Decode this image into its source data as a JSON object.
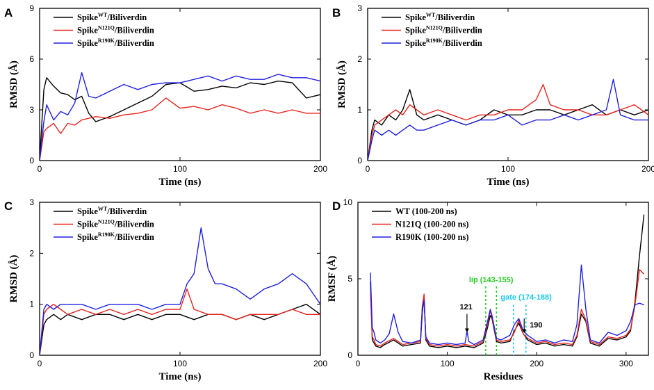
{
  "colors": {
    "WT": "#000000",
    "N121Q": "#e8231d",
    "R190K": "#1f1fe0",
    "lip": "#22cc22",
    "gate": "#18c8e8"
  },
  "chart_data": [
    {
      "panel": "A",
      "type": "line",
      "xlabel": "Time (ns)",
      "ylabel": "RMSD (Å)",
      "xlim": [
        0,
        200
      ],
      "ylim": [
        0,
        9
      ],
      "xticks": [
        "0",
        "100",
        "200"
      ],
      "yticks": [
        "0",
        "3",
        "6",
        "9"
      ],
      "legend": [
        {
          "pre": "Spike",
          "sup": "WT",
          "post": "/Biliverdin",
          "key": "WT"
        },
        {
          "pre": "Spike",
          "sup": "N121Q",
          "post": "/Biliverdin",
          "key": "N121Q"
        },
        {
          "pre": "Spike",
          "sup": "R190K",
          "post": "/Biliverdin",
          "key": "R190K"
        }
      ],
      "series": [
        {
          "key": "WT",
          "x": [
            0,
            3,
            5,
            10,
            15,
            20,
            25,
            30,
            35,
            40,
            50,
            60,
            70,
            80,
            90,
            100,
            110,
            120,
            130,
            140,
            150,
            160,
            170,
            180,
            190,
            200
          ],
          "y": [
            0,
            4.2,
            4.9,
            4.4,
            4.0,
            3.9,
            3.6,
            3.8,
            2.8,
            2.3,
            2.6,
            3.0,
            3.4,
            3.8,
            4.5,
            4.6,
            4.1,
            4.2,
            4.4,
            4.3,
            4.6,
            4.5,
            4.7,
            4.6,
            3.7,
            3.9
          ]
        },
        {
          "key": "N121Q",
          "x": [
            0,
            3,
            5,
            10,
            15,
            20,
            25,
            30,
            40,
            50,
            60,
            70,
            80,
            90,
            100,
            110,
            120,
            130,
            140,
            150,
            160,
            170,
            180,
            190,
            200
          ],
          "y": [
            0,
            1.7,
            1.9,
            2.2,
            1.6,
            2.2,
            2.1,
            2.4,
            2.6,
            2.5,
            2.7,
            2.8,
            3.0,
            3.7,
            3.1,
            3.2,
            3.0,
            3.3,
            3.1,
            2.8,
            3.0,
            2.8,
            3.0,
            2.8,
            2.8
          ]
        },
        {
          "key": "R190K",
          "x": [
            0,
            3,
            5,
            10,
            15,
            20,
            25,
            30,
            35,
            40,
            50,
            60,
            70,
            80,
            90,
            100,
            110,
            120,
            130,
            140,
            150,
            160,
            170,
            180,
            190,
            200
          ],
          "y": [
            0,
            2.3,
            3.3,
            2.4,
            2.9,
            2.7,
            3.4,
            5.2,
            3.8,
            3.7,
            4.1,
            4.5,
            4.2,
            4.5,
            4.6,
            4.6,
            4.8,
            5.0,
            4.7,
            5.0,
            4.8,
            4.8,
            5.1,
            4.9,
            4.9,
            4.7
          ]
        }
      ]
    },
    {
      "panel": "B",
      "type": "line",
      "xlabel": "Time (ns)",
      "ylabel": "RMSD (Å)",
      "xlim": [
        0,
        200
      ],
      "ylim": [
        0,
        3
      ],
      "xticks": [
        "0",
        "100",
        "200"
      ],
      "yticks": [
        "0",
        "1",
        "2",
        "3"
      ],
      "legend": [
        {
          "pre": "Spike",
          "sup": "WT",
          "post": "/Biliverdin",
          "key": "WT"
        },
        {
          "pre": "Spike",
          "sup": "N121Q",
          "post": "/Biliverdin",
          "key": "N121Q"
        },
        {
          "pre": "Spike",
          "sup": "R190K",
          "post": "/Biliverdin",
          "key": "R190K"
        }
      ],
      "series": [
        {
          "key": "WT",
          "x": [
            0,
            3,
            5,
            10,
            15,
            20,
            25,
            30,
            35,
            40,
            50,
            60,
            70,
            80,
            90,
            100,
            110,
            120,
            130,
            140,
            150,
            160,
            170,
            180,
            190,
            200
          ],
          "y": [
            0,
            0.6,
            0.8,
            0.7,
            0.9,
            0.8,
            1.0,
            1.4,
            0.9,
            0.8,
            0.9,
            0.8,
            0.7,
            0.8,
            1.0,
            0.9,
            0.9,
            1.0,
            1.0,
            0.9,
            1.0,
            1.1,
            0.9,
            1.0,
            0.9,
            1.0
          ]
        },
        {
          "key": "N121Q",
          "x": [
            0,
            3,
            5,
            10,
            15,
            20,
            25,
            30,
            35,
            40,
            50,
            60,
            70,
            80,
            90,
            100,
            110,
            120,
            125,
            130,
            140,
            150,
            160,
            170,
            180,
            190,
            200
          ],
          "y": [
            0,
            0.5,
            0.7,
            0.8,
            0.9,
            1.0,
            0.9,
            1.1,
            1.0,
            0.9,
            1.0,
            0.9,
            0.8,
            0.9,
            0.9,
            1.0,
            1.0,
            1.2,
            1.5,
            1.1,
            1.0,
            1.0,
            0.9,
            0.9,
            1.0,
            1.1,
            0.9
          ]
        },
        {
          "key": "R190K",
          "x": [
            0,
            3,
            5,
            10,
            15,
            20,
            25,
            30,
            35,
            40,
            50,
            60,
            70,
            80,
            90,
            100,
            110,
            120,
            130,
            140,
            150,
            160,
            170,
            175,
            180,
            190,
            200
          ],
          "y": [
            0,
            0.4,
            0.6,
            0.5,
            0.6,
            0.5,
            0.6,
            0.7,
            0.6,
            0.6,
            0.7,
            0.8,
            0.7,
            0.8,
            0.8,
            0.9,
            0.7,
            0.8,
            0.8,
            0.9,
            0.8,
            0.9,
            1.0,
            1.6,
            0.9,
            0.8,
            0.8
          ]
        }
      ]
    },
    {
      "panel": "C",
      "type": "line",
      "xlabel": "Time (ns)",
      "ylabel": "RMSD (Å)",
      "xlim": [
        0,
        200
      ],
      "ylim": [
        0,
        3
      ],
      "xticks": [
        "0",
        "100",
        "200"
      ],
      "yticks": [
        "0",
        "1",
        "2",
        "3"
      ],
      "legend": [
        {
          "pre": "Spike",
          "sup": "WT",
          "post": "/Biliverdin",
          "key": "WT"
        },
        {
          "pre": "Spike",
          "sup": "N121Q",
          "post": "/Biliverdin",
          "key": "N121Q"
        },
        {
          "pre": "Spike",
          "sup": "R190K",
          "post": "/Biliverdin",
          "key": "R190K"
        }
      ],
      "series": [
        {
          "key": "WT",
          "x": [
            0,
            3,
            5,
            10,
            15,
            20,
            30,
            40,
            50,
            60,
            70,
            80,
            90,
            100,
            110,
            120,
            130,
            140,
            150,
            160,
            170,
            180,
            190,
            200
          ],
          "y": [
            0,
            0.6,
            0.7,
            0.8,
            0.7,
            0.8,
            0.7,
            0.8,
            0.8,
            0.7,
            0.8,
            0.7,
            0.8,
            0.8,
            0.7,
            0.8,
            0.8,
            0.7,
            0.8,
            0.7,
            0.8,
            0.9,
            1.0,
            0.8
          ]
        },
        {
          "key": "N121Q",
          "x": [
            0,
            3,
            5,
            10,
            15,
            20,
            30,
            40,
            50,
            60,
            70,
            80,
            90,
            100,
            105,
            110,
            120,
            130,
            140,
            150,
            160,
            170,
            180,
            190,
            200
          ],
          "y": [
            0,
            0.8,
            0.9,
            1.0,
            0.9,
            0.8,
            0.9,
            0.8,
            0.9,
            0.8,
            0.9,
            0.8,
            0.9,
            0.9,
            1.3,
            0.9,
            0.8,
            0.8,
            0.7,
            0.8,
            0.8,
            0.8,
            0.9,
            0.8,
            0.8
          ]
        },
        {
          "key": "R190K",
          "x": [
            0,
            3,
            5,
            10,
            15,
            20,
            30,
            40,
            50,
            60,
            70,
            80,
            90,
            100,
            105,
            110,
            115,
            120,
            125,
            130,
            140,
            150,
            160,
            170,
            180,
            190,
            195,
            200
          ],
          "y": [
            0,
            0.9,
            1.0,
            0.9,
            1.0,
            1.0,
            1.0,
            0.9,
            1.0,
            1.0,
            1.0,
            0.9,
            1.0,
            1.0,
            1.4,
            1.6,
            2.5,
            1.7,
            1.4,
            1.4,
            1.3,
            1.1,
            1.3,
            1.4,
            1.6,
            1.4,
            1.2,
            1.0
          ]
        }
      ]
    },
    {
      "panel": "D",
      "type": "line",
      "xlabel": "Residues",
      "ylabel": "RMSF (Å)",
      "xlim": [
        0,
        325
      ],
      "ylim": [
        0,
        10
      ],
      "xticks": [
        "0",
        "100",
        "200",
        "300"
      ],
      "yticks": [
        "0",
        "5",
        "10"
      ],
      "legend": [
        {
          "pre": "WT (100-200 ns)",
          "sup": "",
          "post": "",
          "key": "WT"
        },
        {
          "pre": "N121Q (100-200 ns)",
          "sup": "",
          "post": "",
          "key": "N121Q"
        },
        {
          "pre": "R190K (100-200 ns)",
          "sup": "",
          "post": "",
          "key": "R190K"
        }
      ],
      "annotations": {
        "lip_label": "lip (143-155)",
        "gate_label": "gate (174-188)",
        "res121": "121",
        "res190": "190",
        "lip_range": [
          143,
          155
        ],
        "gate_range": [
          174,
          188
        ]
      },
      "series": [
        {
          "key": "WT",
          "x": [
            14,
            16,
            18,
            20,
            25,
            30,
            40,
            50,
            60,
            70,
            72,
            74,
            76,
            80,
            90,
            100,
            110,
            120,
            130,
            140,
            145,
            148,
            150,
            155,
            160,
            170,
            175,
            180,
            185,
            190,
            200,
            210,
            220,
            230,
            240,
            245,
            250,
            255,
            260,
            270,
            280,
            290,
            300,
            305,
            310,
            315,
            320
          ],
          "y": [
            4.8,
            1.0,
            0.8,
            0.6,
            0.5,
            0.7,
            1.0,
            0.6,
            0.7,
            0.8,
            2.8,
            3.7,
            1.0,
            0.6,
            0.5,
            0.6,
            0.5,
            0.6,
            0.5,
            0.8,
            1.8,
            2.6,
            2.4,
            0.9,
            0.8,
            0.9,
            1.6,
            2.1,
            1.4,
            1.0,
            0.7,
            0.8,
            0.6,
            0.7,
            0.6,
            1.2,
            2.7,
            2.2,
            0.8,
            0.6,
            1.1,
            1.0,
            1.2,
            1.6,
            3.5,
            6.5,
            9.2
          ]
        },
        {
          "key": "N121Q",
          "x": [
            14,
            16,
            18,
            20,
            25,
            30,
            40,
            50,
            60,
            70,
            72,
            74,
            76,
            80,
            90,
            100,
            110,
            120,
            130,
            140,
            145,
            148,
            150,
            155,
            160,
            170,
            175,
            180,
            185,
            190,
            200,
            210,
            220,
            230,
            240,
            245,
            250,
            255,
            260,
            270,
            280,
            290,
            300,
            305,
            310,
            315,
            320
          ],
          "y": [
            4.1,
            1.2,
            1.0,
            0.7,
            0.6,
            0.8,
            1.1,
            0.7,
            0.8,
            0.9,
            3.2,
            4.0,
            1.1,
            0.7,
            0.6,
            0.7,
            0.6,
            0.7,
            0.6,
            0.9,
            2.0,
            2.9,
            2.5,
            1.0,
            0.9,
            1.0,
            1.5,
            2.3,
            1.4,
            1.1,
            0.8,
            0.9,
            0.7,
            0.8,
            0.7,
            1.3,
            3.0,
            2.3,
            0.9,
            0.7,
            1.2,
            1.1,
            1.3,
            1.7,
            3.3,
            5.6,
            5.3
          ]
        },
        {
          "key": "R190K",
          "x": [
            14,
            16,
            18,
            20,
            25,
            30,
            35,
            40,
            45,
            50,
            60,
            70,
            72,
            74,
            76,
            80,
            90,
            100,
            110,
            120,
            122,
            124,
            130,
            140,
            145,
            148,
            150,
            155,
            160,
            170,
            175,
            180,
            185,
            190,
            200,
            210,
            220,
            230,
            240,
            245,
            250,
            255,
            260,
            270,
            280,
            290,
            300,
            305,
            310,
            315,
            320
          ],
          "y": [
            5.4,
            1.8,
            1.5,
            1.0,
            0.8,
            1.0,
            1.4,
            2.7,
            1.5,
            0.9,
            0.8,
            1.0,
            3.0,
            3.6,
            1.2,
            0.8,
            0.7,
            0.8,
            0.7,
            0.8,
            1.6,
            0.9,
            0.7,
            1.0,
            2.2,
            3.0,
            2.6,
            1.1,
            1.0,
            1.3,
            2.0,
            2.4,
            1.6,
            1.3,
            0.9,
            1.0,
            0.8,
            1.0,
            0.9,
            2.0,
            5.9,
            3.0,
            1.0,
            0.8,
            1.5,
            1.3,
            1.6,
            2.2,
            3.3,
            3.4,
            3.3
          ]
        }
      ]
    }
  ]
}
